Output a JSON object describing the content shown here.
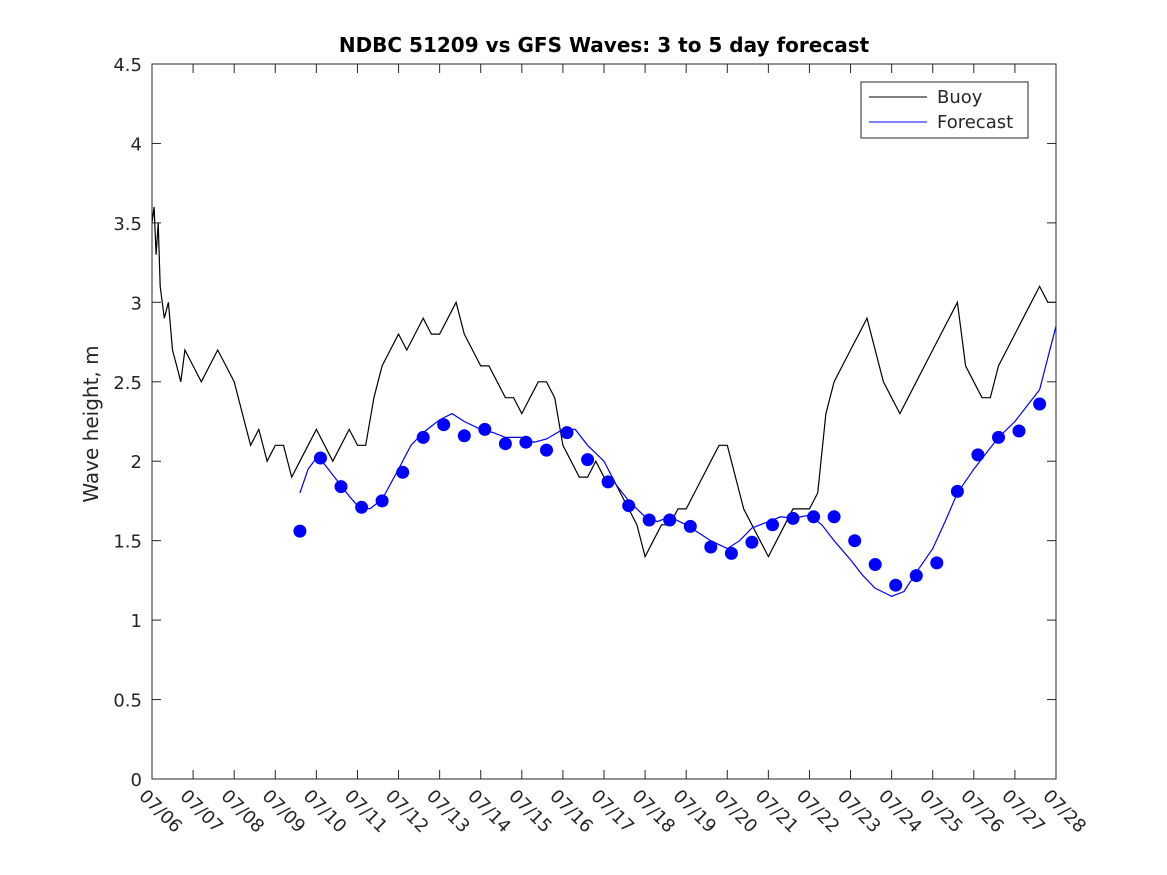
{
  "chart_data": {
    "type": "line",
    "title": "NDBC 51209 vs GFS Waves: 3 to 5 day forecast",
    "xlabel": "",
    "ylabel": "Wave height, m",
    "x_ticks": [
      "07/06",
      "07/07",
      "07/08",
      "07/09",
      "07/10",
      "07/11",
      "07/12",
      "07/13",
      "07/14",
      "07/15",
      "07/16",
      "07/17",
      "07/18",
      "07/19",
      "07/20",
      "07/21",
      "07/22",
      "07/23",
      "07/24",
      "07/25",
      "07/26",
      "07/27",
      "07/28"
    ],
    "y_ticks": [
      "0",
      "0.5",
      "1",
      "1.5",
      "2",
      "2.5",
      "3",
      "3.5",
      "4",
      "4.5"
    ],
    "xlim": [
      "07/06",
      "07/28"
    ],
    "ylim": [
      0,
      4.5
    ],
    "grid": false,
    "legend_position": "top-right",
    "colors": {
      "buoy": "#000000",
      "forecast": "#0000ff"
    },
    "series": [
      {
        "name": "Buoy",
        "style": "line",
        "x_days_from_0706": [
          0.0,
          0.05,
          0.1,
          0.15,
          0.2,
          0.3,
          0.4,
          0.5,
          0.6,
          0.7,
          0.8,
          1.0,
          1.2,
          1.4,
          1.6,
          1.8,
          2.0,
          2.2,
          2.4,
          2.6,
          2.8,
          3.0,
          3.2,
          3.4,
          3.6,
          3.8,
          4.0,
          4.2,
          4.4,
          4.6,
          4.8,
          5.0,
          5.2,
          5.4,
          5.6,
          5.8,
          6.0,
          6.2,
          6.4,
          6.6,
          6.8,
          7.0,
          7.2,
          7.4,
          7.6,
          7.8,
          8.0,
          8.2,
          8.4,
          8.6,
          8.8,
          9.0,
          9.2,
          9.4,
          9.6,
          9.8,
          10.0,
          10.2,
          10.4,
          10.6,
          10.8,
          11.0,
          11.2,
          11.4,
          11.6,
          11.8,
          12.0,
          12.2,
          12.4,
          12.6,
          12.8,
          13.0,
          13.2,
          13.4,
          13.6,
          13.8,
          14.0,
          14.2,
          14.4,
          14.6,
          14.8,
          15.0,
          15.2,
          15.4,
          15.6,
          15.8,
          16.0,
          16.2,
          16.4,
          16.6,
          16.8,
          17.0,
          17.2,
          17.4,
          17.6,
          17.8,
          18.0,
          18.2,
          18.4,
          18.6,
          18.8,
          19.0,
          19.2,
          19.4,
          19.6,
          19.8,
          20.0,
          20.2,
          20.4,
          20.6,
          20.8,
          21.0,
          21.2,
          21.4,
          21.6,
          21.8,
          22.0
        ],
        "y": [
          3.5,
          3.6,
          3.3,
          3.5,
          3.1,
          2.9,
          3.0,
          2.7,
          2.6,
          2.5,
          2.7,
          2.6,
          2.5,
          2.6,
          2.7,
          2.6,
          2.5,
          2.3,
          2.1,
          2.2,
          2.0,
          2.1,
          2.1,
          1.9,
          2.0,
          2.1,
          2.2,
          2.1,
          2.0,
          2.1,
          2.2,
          2.1,
          2.1,
          2.4,
          2.6,
          2.7,
          2.8,
          2.7,
          2.8,
          2.9,
          2.8,
          2.8,
          2.9,
          3.0,
          2.8,
          2.7,
          2.6,
          2.6,
          2.5,
          2.4,
          2.4,
          2.3,
          2.4,
          2.5,
          2.5,
          2.4,
          2.1,
          2.0,
          1.9,
          1.9,
          2.0,
          1.9,
          1.9,
          1.8,
          1.7,
          1.6,
          1.4,
          1.5,
          1.6,
          1.6,
          1.7,
          1.7,
          1.8,
          1.9,
          2.0,
          2.1,
          2.1,
          1.9,
          1.7,
          1.6,
          1.5,
          1.4,
          1.5,
          1.6,
          1.7,
          1.7,
          1.7,
          1.8,
          2.3,
          2.5,
          2.6,
          2.7,
          2.8,
          2.9,
          2.7,
          2.5,
          2.4,
          2.3,
          2.4,
          2.5,
          2.6,
          2.7,
          2.8,
          2.9,
          3.0,
          2.6,
          2.5,
          2.4,
          2.4,
          2.6,
          2.7,
          2.8,
          2.9,
          3.0,
          3.1,
          3.0,
          3.0
        ]
      },
      {
        "name": "Forecast",
        "style": "line",
        "x_days_from_0706": [
          3.6,
          3.8,
          4.0,
          4.2,
          4.5,
          4.8,
          5.0,
          5.3,
          5.6,
          6.0,
          6.3,
          6.6,
          7.0,
          7.3,
          7.6,
          8.0,
          8.3,
          8.6,
          9.0,
          9.3,
          9.6,
          10.0,
          10.3,
          10.6,
          11.0,
          11.3,
          11.6,
          12.0,
          12.3,
          12.6,
          13.0,
          13.3,
          13.6,
          14.0,
          14.3,
          14.6,
          15.0,
          15.3,
          15.6,
          16.0,
          16.3,
          16.6,
          17.0,
          17.3,
          17.6,
          18.0,
          18.3,
          18.6,
          19.0,
          19.3,
          19.6,
          20.0,
          20.3,
          20.6,
          21.0,
          21.3,
          21.6,
          22.0
        ],
        "y": [
          1.8,
          1.95,
          2.02,
          1.98,
          1.88,
          1.78,
          1.72,
          1.7,
          1.76,
          1.95,
          2.1,
          2.18,
          2.26,
          2.3,
          2.25,
          2.2,
          2.18,
          2.15,
          2.15,
          2.12,
          2.14,
          2.2,
          2.2,
          2.1,
          2.0,
          1.85,
          1.75,
          1.65,
          1.62,
          1.65,
          1.6,
          1.55,
          1.5,
          1.45,
          1.5,
          1.58,
          1.62,
          1.65,
          1.64,
          1.66,
          1.6,
          1.5,
          1.38,
          1.28,
          1.2,
          1.15,
          1.18,
          1.3,
          1.45,
          1.62,
          1.8,
          1.95,
          2.05,
          2.15,
          2.25,
          2.35,
          2.45,
          2.85
        ]
      },
      {
        "name": "",
        "style": "markers",
        "x_days_from_0706": [
          3.6,
          4.1,
          4.6,
          5.1,
          5.6,
          6.1,
          6.6,
          7.1,
          7.6,
          8.1,
          8.6,
          9.1,
          9.6,
          10.1,
          10.6,
          11.1,
          11.6,
          12.1,
          12.6,
          13.1,
          13.6,
          14.1,
          14.6,
          15.1,
          15.6,
          16.1,
          16.6,
          17.1,
          17.6,
          18.1,
          18.6,
          19.1,
          19.6,
          20.1,
          20.6,
          21.1,
          21.6
        ],
        "y": [
          1.56,
          2.02,
          1.84,
          1.71,
          1.75,
          1.93,
          2.15,
          2.23,
          2.16,
          2.2,
          2.11,
          2.12,
          2.07,
          2.18,
          2.01,
          1.87,
          1.72,
          1.63,
          1.63,
          1.59,
          1.46,
          1.42,
          1.49,
          1.6,
          1.64,
          1.65,
          1.65,
          1.5,
          1.35,
          1.22,
          1.28,
          1.36,
          1.81,
          2.04,
          2.15,
          2.19,
          2.36
        ]
      }
    ]
  }
}
